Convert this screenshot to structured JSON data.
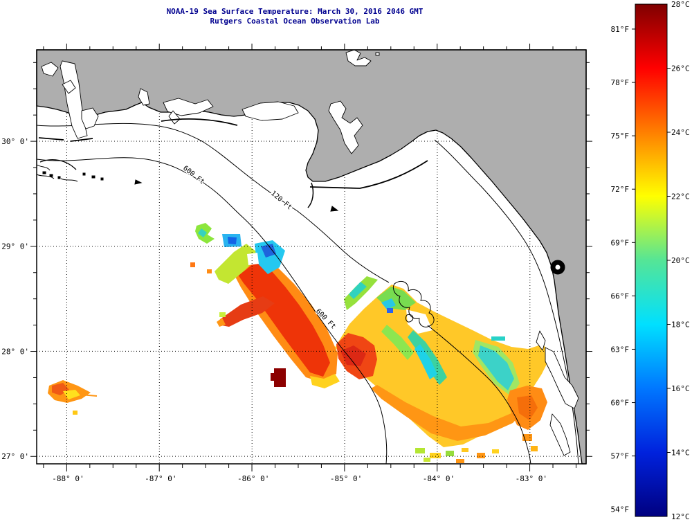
{
  "title": {
    "line1": "NOAA-19 Sea Surface Temperature:  March 30, 2016 2046 GMT",
    "line2": "Rutgers Coastal Ocean Observation Lab"
  },
  "colors": {
    "title_text": "#00008f",
    "land": "#aeaeae",
    "water": "#ffffff",
    "axis": "#000000"
  },
  "axes": {
    "lat_labels": [
      "30° 0'",
      "29° 0'",
      "28° 0'",
      "27° 0'"
    ],
    "lon_labels": [
      "-88° 0'",
      "-87° 0'",
      "-86° 0'",
      "-85° 0'",
      "-84° 0'",
      "-83° 0'"
    ]
  },
  "contour_labels": [
    "600 Ft",
    "120 Ft",
    "600 Ft"
  ],
  "colorbar": {
    "celsius": [
      "28°C",
      "26°C",
      "24°C",
      "22°C",
      "20°C",
      "18°C",
      "16°C",
      "14°C",
      "12°C"
    ],
    "fahrenheit": [
      "81°F",
      "78°F",
      "75°F",
      "72°F",
      "69°F",
      "66°F",
      "63°F",
      "60°F",
      "57°F",
      "54°F"
    ],
    "gradient": [
      "#7f0000",
      "#ff0000",
      "#ff7f00",
      "#ffff00",
      "#55e596",
      "#00e0ff",
      "#0077ff",
      "#0022dd",
      "#000080"
    ]
  }
}
